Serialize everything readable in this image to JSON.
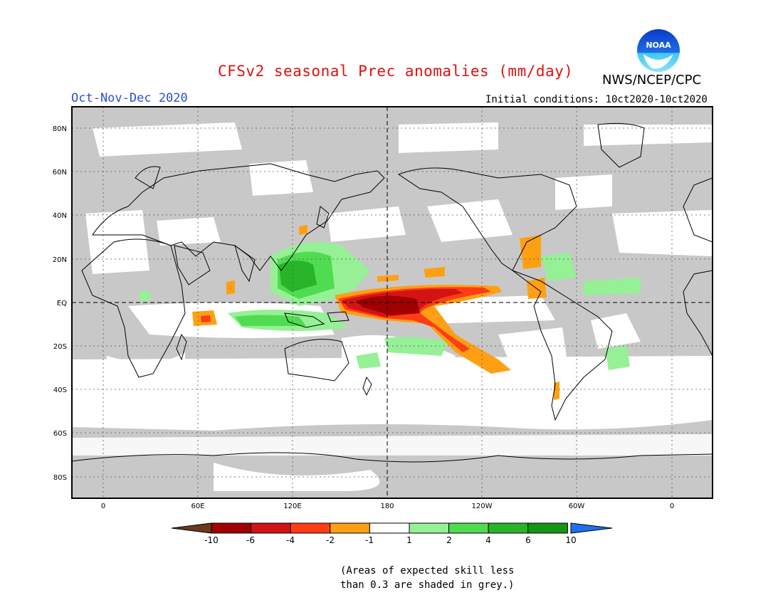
{
  "header": {
    "title": "CFSv2 seasonal Prec anomalies (mm/day)",
    "agency": "NWS/NCEP/CPC",
    "logo_text": "NOAA",
    "season": "Oct-Nov-Dec 2020",
    "initial_conditions": "Initial conditions: 10ct2020-10ct2020"
  },
  "map": {
    "lat_labels": [
      "80N",
      "60N",
      "40N",
      "20N",
      "EQ",
      "20S",
      "40S",
      "60S",
      "80S"
    ],
    "lon_labels": [
      "0",
      "60E",
      "120E",
      "180",
      "120W",
      "60W",
      "0"
    ],
    "projection": "cylindrical-equidistant",
    "gridlines": true,
    "skill_mask_color": "#c8c8c8"
  },
  "colorbar": {
    "ticks": [
      "-10",
      "-6",
      "-4",
      "-2",
      "-1",
      "1",
      "2",
      "4",
      "6",
      "10"
    ],
    "colors": [
      "#6b3a1e",
      "#a00000",
      "#d21414",
      "#ff3c14",
      "#ffa014",
      "#ffffff",
      "#96f096",
      "#50dc50",
      "#28b428",
      "#149614",
      "#2070f0"
    ]
  },
  "note": {
    "line1": "(Areas of expected skill less",
    "line2": "than 0.3 are shaded in grey.)"
  }
}
